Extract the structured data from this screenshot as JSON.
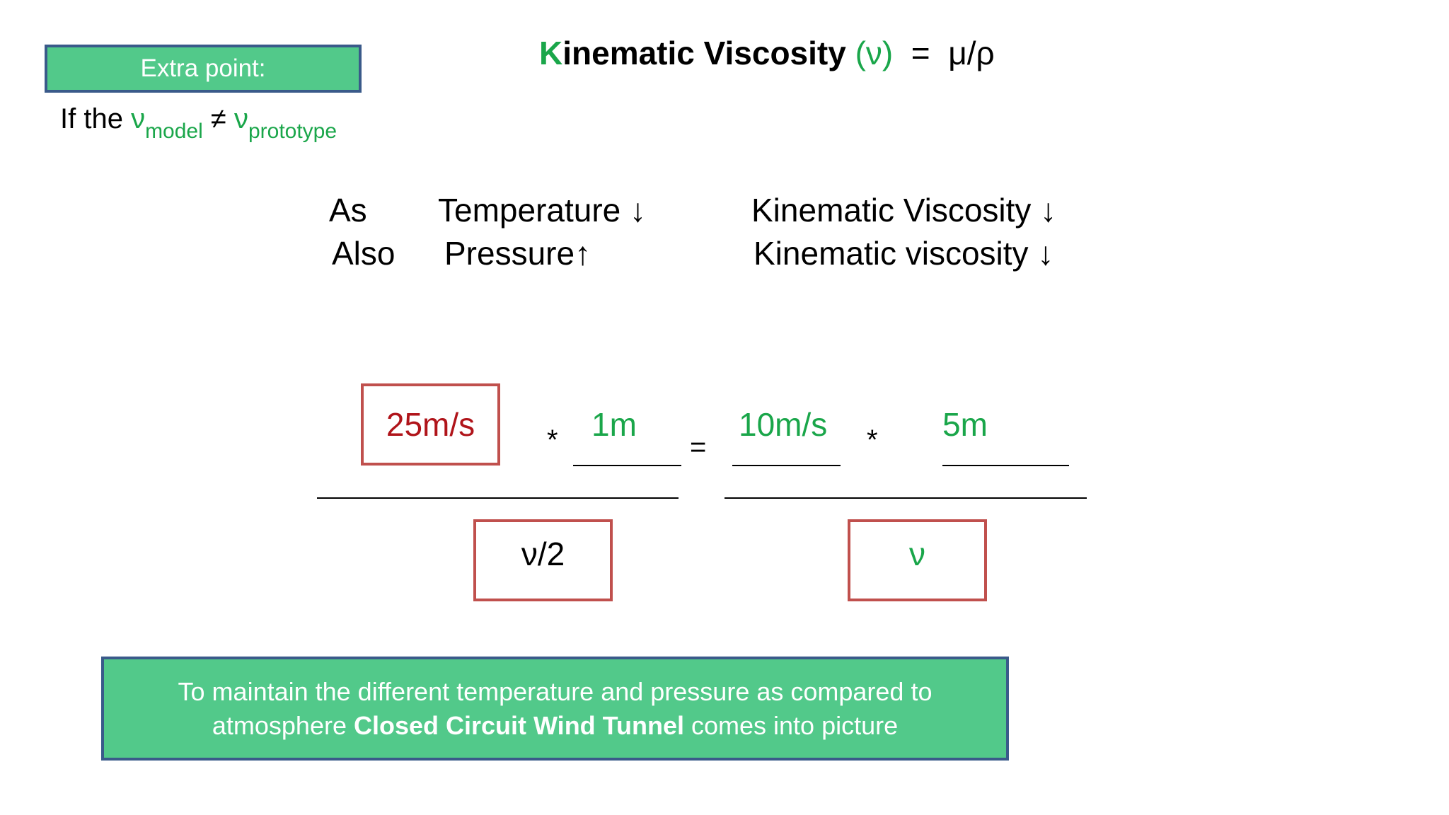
{
  "extra_point": {
    "label": "Extra point:",
    "if_prefix": "If the ",
    "nu": "ν",
    "model_sub": "model",
    "neq": " ≠ ",
    "prototype_sub": "prototype"
  },
  "title": {
    "k": "K",
    "rest": "inematic Viscosity ",
    "nu_paren": "(ν)",
    "formula": "  =  μ/ρ"
  },
  "rows": [
    {
      "lead": "As",
      "cause": "Temperature ↓",
      "effect": "Kinematic Viscosity ↓"
    },
    {
      "lead": "Also",
      "cause": "Pressure↑",
      "effect": "Kinematic viscosity ↓"
    }
  ],
  "equation": {
    "left_velocity": "25m/s",
    "left_length": "1m",
    "right_velocity": "10m/s",
    "right_length": "5m",
    "times": "*",
    "equals": "=",
    "left_denominator": "ν/2",
    "right_denominator": "ν"
  },
  "banner": {
    "line1": "To maintain the different temperature and pressure as compared to",
    "line2_prefix": "atmosphere ",
    "line2_bold": "Closed Circuit Wind Tunnel",
    "line2_suffix": " comes into picture"
  },
  "colors": {
    "green_text": "#1aa64a",
    "red_text": "#b0141a",
    "box_fill": "#52c98a",
    "box_border": "#3a5a8a",
    "frame_red": "#c0504d"
  }
}
